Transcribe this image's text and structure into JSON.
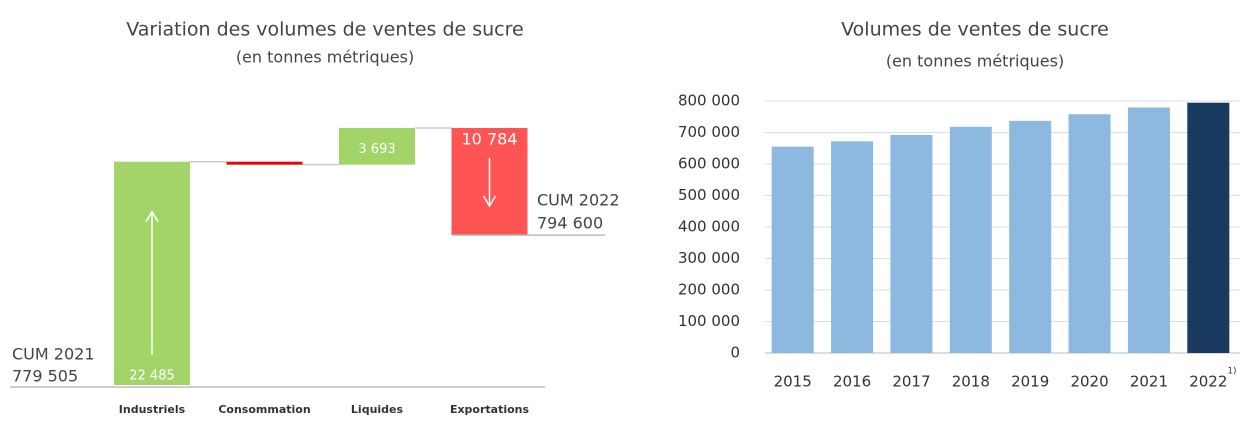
{
  "chart_data": [
    {
      "type": "waterfall",
      "title": "Variation des volumes de ventes de sucre",
      "subtitle": "(en tonnes métriques)",
      "start": {
        "name": "CUM 2021",
        "value": 779505,
        "label": "779 505"
      },
      "end": {
        "name": "CUM 2022",
        "value": 794600,
        "label": "794 600"
      },
      "categories": [
        "Industriels",
        "Consommation",
        "Liquides",
        "Exportations"
      ],
      "values": [
        22485,
        -299,
        3693,
        -10784
      ],
      "value_labels": [
        "22 485",
        null,
        "3 693",
        "10 784"
      ],
      "colors": {
        "increase": "#a3d468",
        "decrease": "#ff5454",
        "decrease_small": "#e8000b"
      }
    },
    {
      "type": "bar",
      "title": "Volumes de ventes de sucre",
      "subtitle": "(en tonnes métriques)",
      "categories": [
        "2015",
        "2016",
        "2017",
        "2018",
        "2019",
        "2020",
        "2021",
        "2022"
      ],
      "footnote_marker": "1)",
      "values": [
        655000,
        672000,
        692000,
        718000,
        737000,
        758000,
        779505,
        794600
      ],
      "colors": [
        "#8db8e0",
        "#8db8e0",
        "#8db8e0",
        "#8db8e0",
        "#8db8e0",
        "#8db8e0",
        "#8db8e0",
        "#173a5e"
      ],
      "ylim": [
        0,
        800000
      ],
      "yticks": [
        0,
        {
          "value": 100000,
          "label": "100 000"
        },
        {
          "value": 200000,
          "label": "200 000"
        },
        {
          "value": 300000,
          "label": "300 000"
        },
        {
          "value": 400000,
          "label": "400 000"
        },
        {
          "value": 500000,
          "label": "500 000"
        },
        {
          "value": 600000,
          "label": "600 000"
        },
        {
          "value": 700000,
          "label": "700 000"
        },
        {
          "value": 800000,
          "label": "800 000"
        }
      ],
      "grid": true
    }
  ]
}
